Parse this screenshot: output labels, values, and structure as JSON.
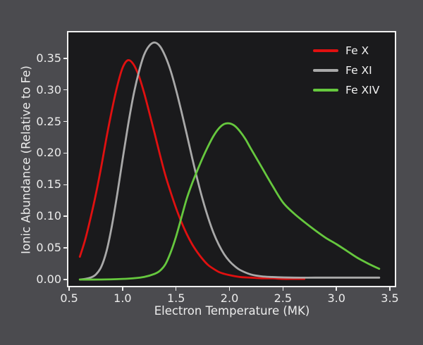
{
  "figure": {
    "background_color": "#4b4b4f",
    "axes_background_color": "#1a1a1c",
    "spine_color": "#f0f0f0",
    "text_color": "#ececec"
  },
  "chart_data": {
    "type": "line",
    "title": "",
    "xlabel": "Electron Temperature (MK)",
    "ylabel": "Ionic Abundance (Relative to Fe)",
    "xlim": [
      0.493,
      3.546
    ],
    "ylim": [
      -0.01,
      0.391
    ],
    "x_ticks": [
      0.5,
      1.0,
      1.5,
      2.0,
      2.5,
      3.0,
      3.5
    ],
    "x_tick_labels": [
      "0.5",
      "1.0",
      "1.5",
      "2.0",
      "2.5",
      "3.0",
      "3.5"
    ],
    "y_ticks": [
      0.0,
      0.05,
      0.1,
      0.15,
      0.2,
      0.25,
      0.3,
      0.35
    ],
    "y_tick_labels": [
      "0.00",
      "0.05",
      "0.10",
      "0.15",
      "0.20",
      "0.25",
      "0.30",
      "0.35"
    ],
    "grid": false,
    "legend_position": "upper right",
    "series": [
      {
        "name": "Fe X",
        "color": "#e01010",
        "peak": {
          "x": 1.05,
          "y": 0.347
        },
        "points": [
          [
            0.6,
            0.036
          ],
          [
            0.65,
            0.063
          ],
          [
            0.7,
            0.097
          ],
          [
            0.75,
            0.135
          ],
          [
            0.8,
            0.178
          ],
          [
            0.85,
            0.225
          ],
          [
            0.9,
            0.268
          ],
          [
            0.95,
            0.306
          ],
          [
            1.0,
            0.335
          ],
          [
            1.05,
            0.347
          ],
          [
            1.1,
            0.341
          ],
          [
            1.15,
            0.323
          ],
          [
            1.2,
            0.296
          ],
          [
            1.25,
            0.264
          ],
          [
            1.3,
            0.231
          ],
          [
            1.35,
            0.197
          ],
          [
            1.4,
            0.165
          ],
          [
            1.45,
            0.138
          ],
          [
            1.5,
            0.113
          ],
          [
            1.55,
            0.091
          ],
          [
            1.6,
            0.072
          ],
          [
            1.65,
            0.056
          ],
          [
            1.7,
            0.043
          ],
          [
            1.75,
            0.032
          ],
          [
            1.8,
            0.023
          ],
          [
            1.85,
            0.017
          ],
          [
            1.9,
            0.012
          ],
          [
            1.95,
            0.009
          ],
          [
            2.0,
            0.007
          ],
          [
            2.1,
            0.004
          ],
          [
            2.2,
            0.003
          ],
          [
            2.3,
            0.002
          ],
          [
            2.4,
            0.002
          ],
          [
            2.5,
            0.001
          ],
          [
            2.6,
            0.001
          ],
          [
            2.7,
            0.001
          ]
        ]
      },
      {
        "name": "Fe XI",
        "color": "#a9a9a9",
        "peak": {
          "x": 1.3,
          "y": 0.375
        },
        "points": [
          [
            0.6,
            0.0
          ],
          [
            0.65,
            0.001
          ],
          [
            0.7,
            0.003
          ],
          [
            0.75,
            0.008
          ],
          [
            0.8,
            0.02
          ],
          [
            0.85,
            0.045
          ],
          [
            0.9,
            0.085
          ],
          [
            0.95,
            0.135
          ],
          [
            1.0,
            0.19
          ],
          [
            1.05,
            0.243
          ],
          [
            1.1,
            0.29
          ],
          [
            1.15,
            0.327
          ],
          [
            1.2,
            0.355
          ],
          [
            1.25,
            0.37
          ],
          [
            1.3,
            0.375
          ],
          [
            1.35,
            0.369
          ],
          [
            1.4,
            0.353
          ],
          [
            1.45,
            0.33
          ],
          [
            1.5,
            0.3
          ],
          [
            1.55,
            0.266
          ],
          [
            1.6,
            0.23
          ],
          [
            1.65,
            0.193
          ],
          [
            1.7,
            0.158
          ],
          [
            1.75,
            0.126
          ],
          [
            1.8,
            0.098
          ],
          [
            1.85,
            0.074
          ],
          [
            1.9,
            0.055
          ],
          [
            1.95,
            0.04
          ],
          [
            2.0,
            0.029
          ],
          [
            2.05,
            0.021
          ],
          [
            2.1,
            0.015
          ],
          [
            2.2,
            0.008
          ],
          [
            2.3,
            0.005
          ],
          [
            2.4,
            0.004
          ],
          [
            2.6,
            0.003
          ],
          [
            2.8,
            0.003
          ],
          [
            3.0,
            0.003
          ],
          [
            3.2,
            0.003
          ],
          [
            3.4,
            0.003
          ]
        ]
      },
      {
        "name": "Fe XIV",
        "color": "#66c83e",
        "peak": {
          "x": 1.98,
          "y": 0.247
        },
        "points": [
          [
            0.6,
            0.0
          ],
          [
            0.8,
            0.0
          ],
          [
            1.0,
            0.001
          ],
          [
            1.1,
            0.002
          ],
          [
            1.2,
            0.004
          ],
          [
            1.3,
            0.009
          ],
          [
            1.35,
            0.014
          ],
          [
            1.4,
            0.024
          ],
          [
            1.45,
            0.043
          ],
          [
            1.5,
            0.068
          ],
          [
            1.55,
            0.098
          ],
          [
            1.6,
            0.128
          ],
          [
            1.65,
            0.152
          ],
          [
            1.7,
            0.173
          ],
          [
            1.75,
            0.193
          ],
          [
            1.8,
            0.211
          ],
          [
            1.85,
            0.227
          ],
          [
            1.9,
            0.239
          ],
          [
            1.95,
            0.246
          ],
          [
            2.0,
            0.247
          ],
          [
            2.05,
            0.243
          ],
          [
            2.1,
            0.234
          ],
          [
            2.15,
            0.222
          ],
          [
            2.2,
            0.207
          ],
          [
            2.3,
            0.178
          ],
          [
            2.4,
            0.149
          ],
          [
            2.5,
            0.122
          ],
          [
            2.6,
            0.105
          ],
          [
            2.7,
            0.091
          ],
          [
            2.8,
            0.078
          ],
          [
            2.9,
            0.066
          ],
          [
            3.0,
            0.056
          ],
          [
            3.1,
            0.045
          ],
          [
            3.2,
            0.034
          ],
          [
            3.3,
            0.025
          ],
          [
            3.4,
            0.017
          ]
        ]
      }
    ]
  }
}
